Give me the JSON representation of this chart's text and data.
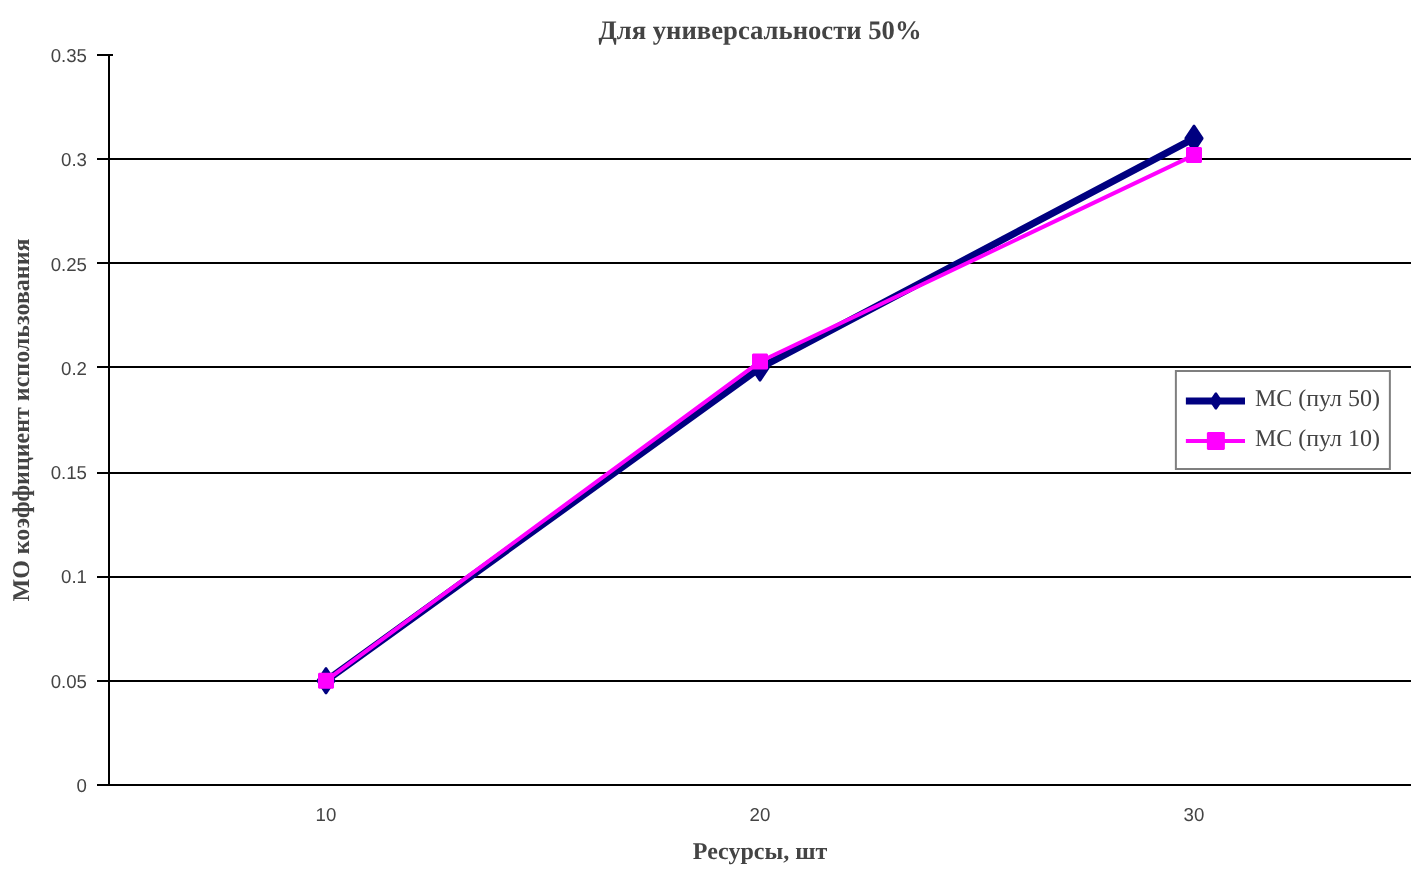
{
  "chart_data": {
    "type": "line",
    "title": "Для универсальности 50%",
    "xlabel": "Ресурсы, шт",
    "ylabel": "МО коэффициент использования",
    "categories": [
      "10",
      "20",
      "30"
    ],
    "series": [
      {
        "name": "МС (пул 50)",
        "color": "#000080",
        "values": [
          0.05,
          0.2,
          0.31
        ],
        "marker": "diamond"
      },
      {
        "name": "МС (пул 10)",
        "color": "#ff00ff",
        "values": [
          0.05,
          0.203,
          0.302
        ],
        "marker": "square"
      }
    ],
    "ylim": [
      0,
      0.35
    ],
    "yticks": [
      0,
      0.05,
      0.1,
      0.15,
      0.2,
      0.25,
      0.3,
      0.35
    ],
    "grid": "y",
    "legend": "right",
    "line_style": "solid"
  }
}
